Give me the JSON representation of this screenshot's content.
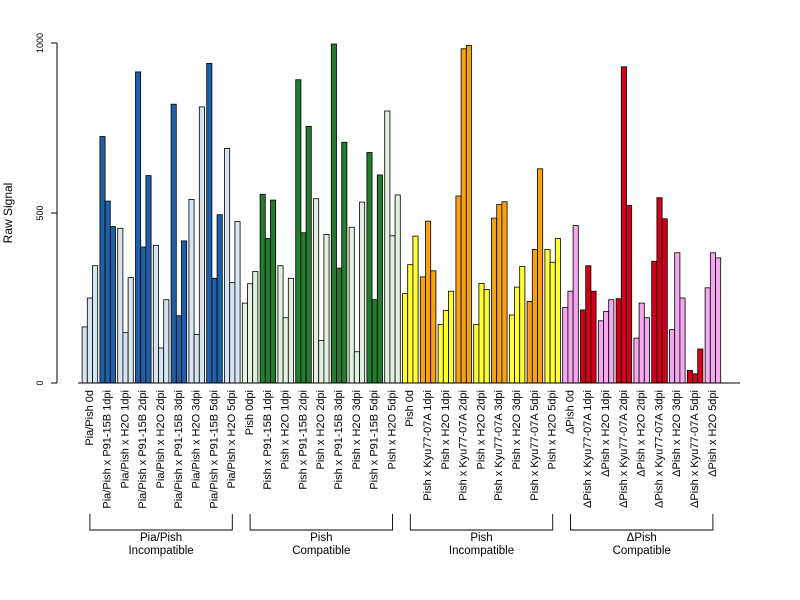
{
  "chart_data": {
    "type": "bar",
    "ylabel": "Raw Signal",
    "ylim": [
      0,
      1000
    ],
    "yticks": [
      0,
      500,
      1000
    ],
    "bars_per_group": 3,
    "categories": [
      "Pia/Pish 0d",
      "Pia/Pish x P91-15B 1dpi",
      "Pia/Pish x H2O 1dpi",
      "Pia/Pish x P91-15B 2dpi",
      "Pia/Pish x H2O 2dpi",
      "Pia/Pish x P91-15B 3dpi",
      "Pia/Pish x H2O 3dpi",
      "Pia/Pish x P91-15B 5dpi",
      "Pia/Pish x H2O 5dpi",
      "Pish 0dpi",
      "Pish x P91-15B 1dpi",
      "Pish x H2O 1dpi",
      "Pish x P91-15B 2dpi",
      "Pish x H2O 2dpi",
      "Pish x P91-15B 3dpi",
      "Pish x H2O 3dpi",
      "Pish x P91-15B 5dpi",
      "Pish x H2O 5dpi",
      "Pish 0d",
      "Pish x Kyu77-07A 1dpi",
      "Pish x H2O 1dpi",
      "Pish x Kyu77-07A 2dpi",
      "Pish x H2O 2dpi",
      "Pish x Kyu77-07A 3dpi",
      "Pish x H2O 3dpi",
      "Pish x Kyu77-07A 5dpi",
      "Pish x H2O 5dpi",
      "ΔPish 0d",
      "ΔPish x Kyu77-07A 1dpi",
      "ΔPish x H2O 1dpi",
      "ΔPish x Kyu77-07A 2dpi",
      "ΔPish x H2O 2dpi",
      "ΔPish x Kyu77-07A 3dpi",
      "ΔPish x H2O 3dpi",
      "ΔPish x Kyu77-07A 5dpi",
      "ΔPish x H2O 5dpi"
    ],
    "values": [
      [
        165,
        250,
        345
      ],
      [
        725,
        535,
        460
      ],
      [
        455,
        148,
        310
      ],
      [
        915,
        400,
        610
      ],
      [
        405,
        103,
        245
      ],
      [
        820,
        198,
        418
      ],
      [
        540,
        143,
        812
      ],
      [
        940,
        308,
        495
      ],
      [
        690,
        295,
        475
      ],
      [
        235,
        292,
        328
      ],
      [
        555,
        425,
        538
      ],
      [
        345,
        192,
        308
      ],
      [
        892,
        442,
        755
      ],
      [
        542,
        125,
        437
      ],
      [
        997,
        338,
        708
      ],
      [
        458,
        92,
        532
      ],
      [
        678,
        245,
        612
      ],
      [
        800,
        433,
        553
      ],
      [
        263,
        348,
        432
      ],
      [
        312,
        476,
        330
      ],
      [
        172,
        213,
        270
      ],
      [
        550,
        983,
        993
      ],
      [
        172,
        293,
        275
      ],
      [
        485,
        525,
        533
      ],
      [
        200,
        282,
        343
      ],
      [
        240,
        393,
        630
      ],
      [
        393,
        355,
        425
      ],
      [
        222,
        270,
        463
      ],
      [
        215,
        345,
        270
      ],
      [
        183,
        210,
        245
      ],
      [
        248,
        930,
        522
      ],
      [
        132,
        235,
        192
      ],
      [
        358,
        545,
        483
      ],
      [
        157,
        383,
        250
      ],
      [
        37,
        27,
        100
      ],
      [
        280,
        383,
        368
      ]
    ],
    "bar_colors": [
      "#d6e3f1",
      "#1f5fa8",
      "#d6e3f1",
      "#1f5fa8",
      "#d6e3f1",
      "#1f5fa8",
      "#d6e3f1",
      "#1f5fa8",
      "#d6e3f1",
      "#e2f1df",
      "#247a2d",
      "#e2f1df",
      "#247a2d",
      "#e2f1df",
      "#247a2d",
      "#e2f1df",
      "#247a2d",
      "#e2f1df",
      "#ffff33",
      "#f5a214",
      "#ffff33",
      "#f5a214",
      "#ffff33",
      "#f5a214",
      "#ffff33",
      "#f5a214",
      "#ffff33",
      "#f4a6ee",
      "#d0001b",
      "#f4a6ee",
      "#d0001b",
      "#f4a6ee",
      "#d0001b",
      "#f4a6ee",
      "#d0001b",
      "#f4a6ee"
    ],
    "brackets": [
      {
        "line1": "Pia/Pish",
        "line2": "Incompatible",
        "from": 0,
        "to": 8
      },
      {
        "line1": "Pish",
        "line2": "Compatible",
        "from": 9,
        "to": 17
      },
      {
        "line1": "Pish",
        "line2": "Incompatible",
        "from": 18,
        "to": 26
      },
      {
        "line1": "ΔPish",
        "line2": "Compatible",
        "from": 27,
        "to": 35
      }
    ]
  }
}
